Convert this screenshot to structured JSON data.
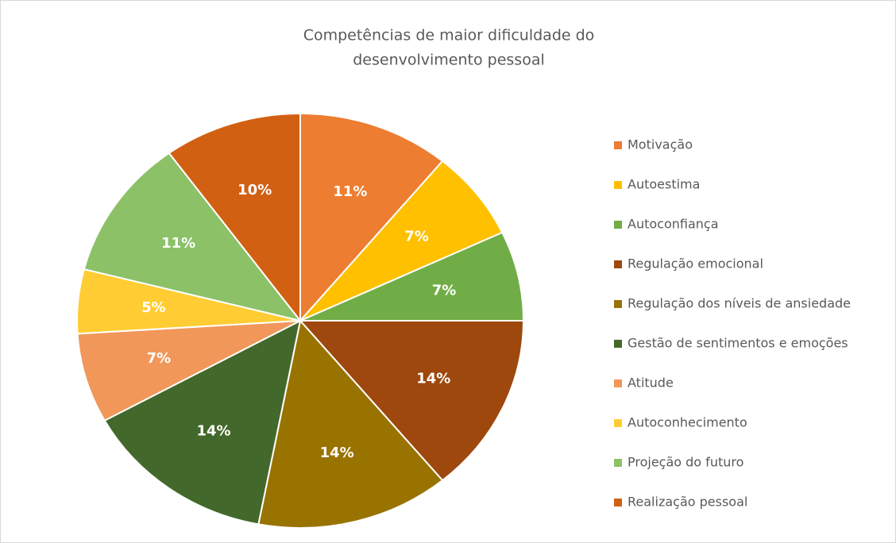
{
  "chart_data": {
    "type": "pie",
    "title": [
      "Competências de maior dificuldade do",
      "desenvolvimento pessoal"
    ],
    "categories": [
      "Motivação",
      "Autoestima",
      "Autoconfiança",
      "Regulação emocional",
      "Regulação dos níveis de ansiedade",
      "Gestão de sentimentos e emoções",
      "Atitude",
      "Autoconhecimento",
      "Projeção do futuro",
      "Realização pessoal"
    ],
    "values": [
      11,
      7,
      7,
      14,
      14,
      14,
      7,
      5,
      11,
      10
    ],
    "value_labels": [
      "11%",
      "7%",
      "7%",
      "14%",
      "14%",
      "14%",
      "7%",
      "5%",
      "11%",
      "10%"
    ],
    "colors": [
      "#ed7d31",
      "#ffc000",
      "#70ad47",
      "#9e480e",
      "#997300",
      "#43682b",
      "#f1975a",
      "#ffcd33",
      "#8cc168",
      "#d26012"
    ],
    "legend": "right"
  }
}
